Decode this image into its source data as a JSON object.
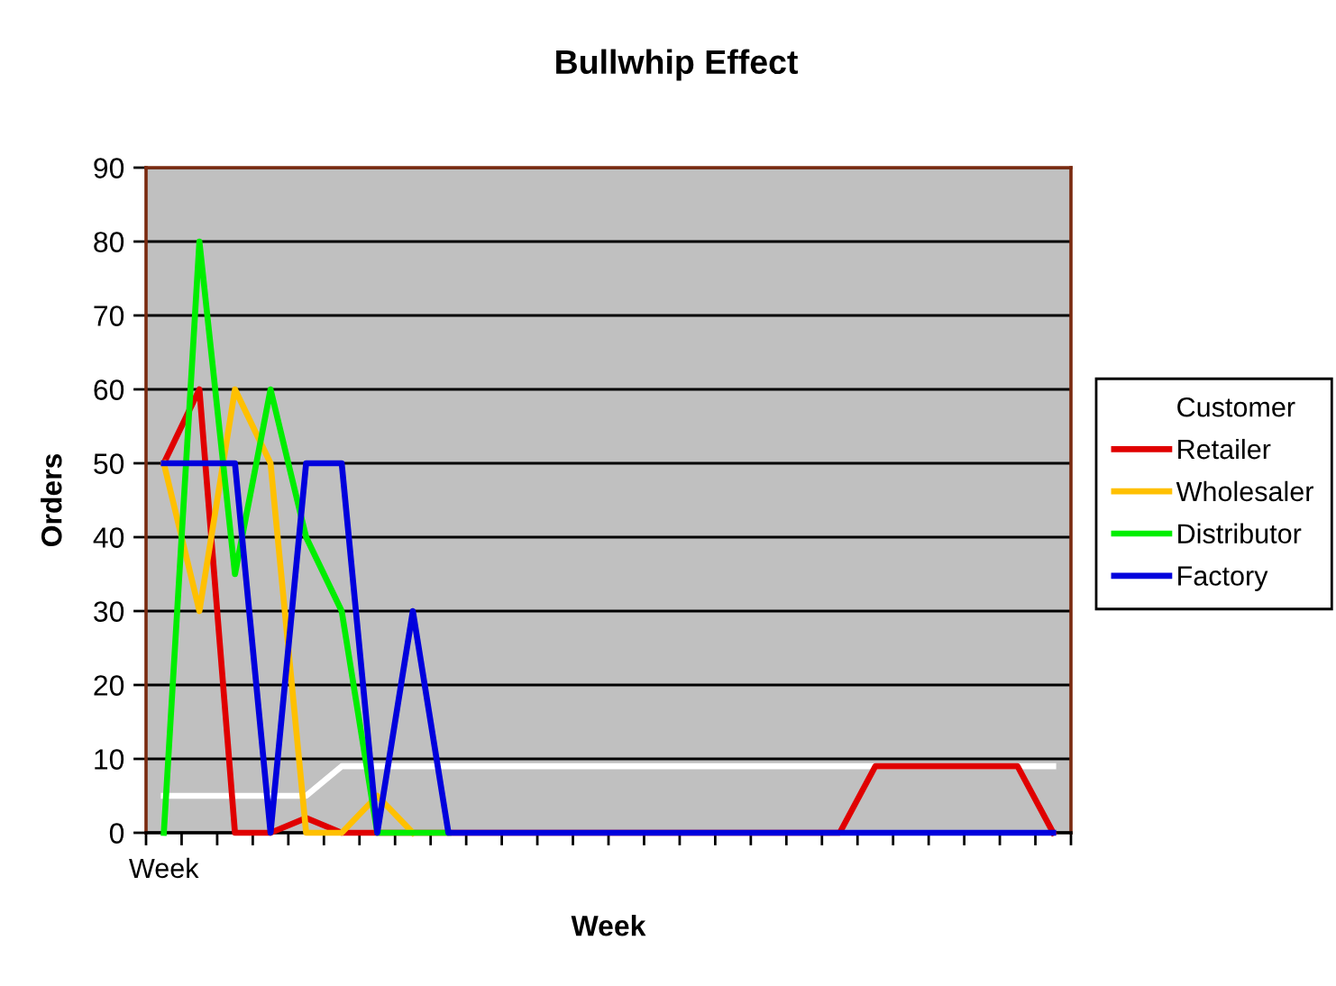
{
  "chart_data": {
    "type": "line",
    "title": "Bullwhip Effect",
    "xlabel": "Week",
    "ylabel": "Orders",
    "categories": [
      "Week",
      null,
      null,
      null,
      null,
      null,
      null,
      null,
      null,
      null,
      null,
      null,
      null,
      null,
      null,
      null,
      null,
      null,
      null,
      null,
      null,
      null,
      null,
      null,
      null,
      null
    ],
    "series": [
      {
        "name": "Customer",
        "color": "#ffffff",
        "values": [
          5,
          5,
          5,
          5,
          5,
          9,
          9,
          9,
          9,
          9,
          9,
          9,
          9,
          9,
          9,
          9,
          9,
          9,
          9,
          9,
          9,
          9,
          9,
          9,
          9,
          9
        ]
      },
      {
        "name": "Retailer",
        "color": "#e00000",
        "values": [
          50,
          60,
          0,
          0,
          2,
          0,
          0,
          0,
          0,
          0,
          0,
          0,
          0,
          0,
          0,
          0,
          0,
          0,
          0,
          0,
          9,
          9,
          9,
          9,
          9,
          0
        ]
      },
      {
        "name": "Wholesaler",
        "color": "#ffc000",
        "values": [
          50,
          30,
          60,
          50,
          0,
          0,
          5,
          0,
          null,
          null,
          null,
          null,
          null,
          null,
          null,
          null,
          null,
          null,
          null,
          null,
          null,
          null,
          null,
          null,
          null,
          null
        ]
      },
      {
        "name": "Distributor",
        "color": "#00ee00",
        "values": [
          0,
          80,
          35,
          60,
          40,
          30,
          0,
          0,
          0,
          null,
          null,
          null,
          null,
          null,
          null,
          null,
          null,
          null,
          null,
          null,
          null,
          null,
          null,
          null,
          null,
          null
        ]
      },
      {
        "name": "Factory",
        "color": "#0000dd",
        "values": [
          50,
          50,
          50,
          0,
          50,
          50,
          0,
          30,
          0,
          0,
          0,
          0,
          0,
          0,
          0,
          0,
          0,
          0,
          0,
          0,
          0,
          0,
          0,
          0,
          0,
          0
        ]
      }
    ],
    "ylim": [
      0,
      90
    ],
    "yticks": [
      0,
      10,
      20,
      30,
      40,
      50,
      60,
      70,
      80,
      90
    ],
    "grid": "y",
    "legend": "right",
    "marker": "none",
    "line_style": "solid"
  }
}
